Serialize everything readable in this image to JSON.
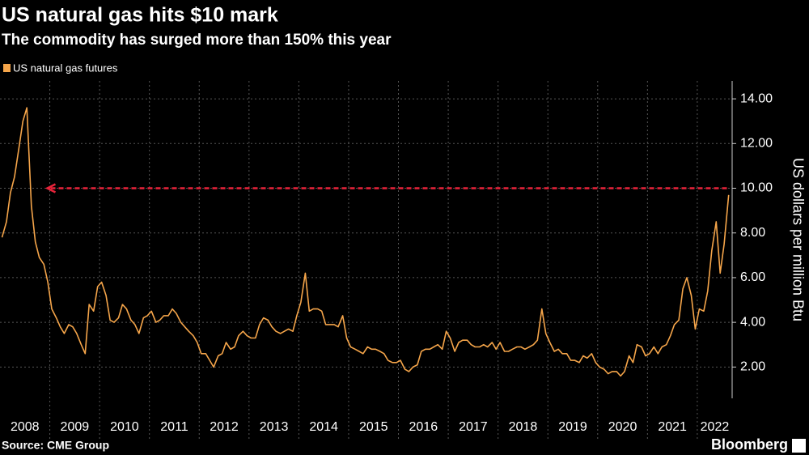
{
  "chart_data": {
    "type": "line",
    "title": "US natural gas hits $10 mark",
    "subtitle": "The commodity has surged more than 150% this year",
    "y_label": "US dollars per million Btu",
    "source": "Source: CME Group",
    "brand": "Bloomberg",
    "legend": "top-left",
    "grid": true,
    "xlim": [
      2008,
      2022.7
    ],
    "xticks": [
      2008,
      2009,
      2010,
      2011,
      2012,
      2013,
      2014,
      2015,
      2016,
      2017,
      2018,
      2019,
      2020,
      2021,
      2022
    ],
    "ylim": [
      0.6,
      14.8
    ],
    "yticks": [
      {
        "value": 2,
        "label": "2.00"
      },
      {
        "value": 4,
        "label": "4.00"
      },
      {
        "value": 6,
        "label": "6.00"
      },
      {
        "value": 8,
        "label": "8.00"
      },
      {
        "value": 10,
        "label": "10.00"
      },
      {
        "value": 12,
        "label": "12.00"
      },
      {
        "value": 14,
        "label": "14.00"
      }
    ],
    "reference_line": {
      "value": 10,
      "x": [
        2008.95,
        2022.63
      ],
      "color": "#e8233a"
    },
    "x": [
      2008.04,
      2008.13,
      2008.21,
      2008.29,
      2008.38,
      2008.46,
      2008.54,
      2008.63,
      2008.71,
      2008.79,
      2008.88,
      2008.96,
      2009.04,
      2009.13,
      2009.21,
      2009.29,
      2009.38,
      2009.46,
      2009.54,
      2009.63,
      2009.71,
      2009.79,
      2009.88,
      2009.96,
      2010.04,
      2010.13,
      2010.21,
      2010.29,
      2010.38,
      2010.46,
      2010.54,
      2010.63,
      2010.71,
      2010.79,
      2010.88,
      2010.96,
      2011.04,
      2011.13,
      2011.21,
      2011.29,
      2011.38,
      2011.46,
      2011.54,
      2011.63,
      2011.71,
      2011.79,
      2011.88,
      2011.96,
      2012.04,
      2012.13,
      2012.21,
      2012.29,
      2012.38,
      2012.46,
      2012.54,
      2012.63,
      2012.71,
      2012.79,
      2012.88,
      2012.96,
      2013.04,
      2013.13,
      2013.21,
      2013.29,
      2013.38,
      2013.46,
      2013.54,
      2013.63,
      2013.71,
      2013.79,
      2013.88,
      2013.96,
      2014.04,
      2014.13,
      2014.21,
      2014.29,
      2014.38,
      2014.46,
      2014.54,
      2014.63,
      2014.71,
      2014.79,
      2014.88,
      2014.96,
      2015.04,
      2015.13,
      2015.21,
      2015.29,
      2015.38,
      2015.46,
      2015.54,
      2015.63,
      2015.71,
      2015.79,
      2015.88,
      2015.96,
      2016.04,
      2016.13,
      2016.21,
      2016.29,
      2016.38,
      2016.46,
      2016.54,
      2016.63,
      2016.71,
      2016.79,
      2016.88,
      2016.96,
      2017.04,
      2017.13,
      2017.21,
      2017.29,
      2017.38,
      2017.46,
      2017.54,
      2017.63,
      2017.71,
      2017.79,
      2017.88,
      2017.96,
      2018.04,
      2018.13,
      2018.21,
      2018.29,
      2018.38,
      2018.46,
      2018.54,
      2018.63,
      2018.71,
      2018.79,
      2018.88,
      2018.96,
      2019.04,
      2019.13,
      2019.21,
      2019.29,
      2019.38,
      2019.46,
      2019.54,
      2019.63,
      2019.71,
      2019.79,
      2019.88,
      2019.96,
      2020.04,
      2020.13,
      2020.21,
      2020.29,
      2020.38,
      2020.46,
      2020.54,
      2020.63,
      2020.71,
      2020.79,
      2020.88,
      2020.96,
      2021.04,
      2021.13,
      2021.21,
      2021.29,
      2021.38,
      2021.46,
      2021.54,
      2021.63,
      2021.71,
      2021.79,
      2021.88,
      2021.96,
      2022.04,
      2022.13,
      2022.21,
      2022.29,
      2022.38,
      2022.46,
      2022.54,
      2022.63
    ],
    "series": [
      {
        "name": "US natural gas futures",
        "color": "#f5a54a",
        "values": [
          7.8,
          8.5,
          9.8,
          10.5,
          11.8,
          13.0,
          13.6,
          9.2,
          7.6,
          6.9,
          6.6,
          5.8,
          4.6,
          4.2,
          3.8,
          3.5,
          3.9,
          3.8,
          3.5,
          3.0,
          2.6,
          4.8,
          4.5,
          5.6,
          5.8,
          5.2,
          4.1,
          4.0,
          4.2,
          4.8,
          4.6,
          4.1,
          3.9,
          3.5,
          4.2,
          4.3,
          4.5,
          4.0,
          4.1,
          4.3,
          4.3,
          4.6,
          4.4,
          4.0,
          3.8,
          3.6,
          3.4,
          3.1,
          2.6,
          2.6,
          2.3,
          2.0,
          2.5,
          2.6,
          3.1,
          2.8,
          2.9,
          3.4,
          3.6,
          3.4,
          3.3,
          3.3,
          3.9,
          4.2,
          4.1,
          3.8,
          3.6,
          3.5,
          3.6,
          3.7,
          3.6,
          4.3,
          4.9,
          6.2,
          4.5,
          4.6,
          4.6,
          4.5,
          3.9,
          3.9,
          3.9,
          3.8,
          4.3,
          3.3,
          2.9,
          2.8,
          2.7,
          2.6,
          2.9,
          2.8,
          2.8,
          2.7,
          2.6,
          2.3,
          2.2,
          2.2,
          2.3,
          1.9,
          1.8,
          2.0,
          2.1,
          2.7,
          2.8,
          2.8,
          2.9,
          3.0,
          2.8,
          3.6,
          3.3,
          2.7,
          3.1,
          3.2,
          3.2,
          3.0,
          2.9,
          2.9,
          3.0,
          2.9,
          3.1,
          2.8,
          3.1,
          2.7,
          2.7,
          2.8,
          2.9,
          2.9,
          2.8,
          2.9,
          3.0,
          3.2,
          4.6,
          3.5,
          3.1,
          2.7,
          2.8,
          2.6,
          2.6,
          2.3,
          2.3,
          2.2,
          2.5,
          2.4,
          2.6,
          2.2,
          2.0,
          1.9,
          1.7,
          1.8,
          1.8,
          1.6,
          1.8,
          2.5,
          2.2,
          3.0,
          2.9,
          2.5,
          2.6,
          2.9,
          2.6,
          2.9,
          3.0,
          3.4,
          3.9,
          4.1,
          5.5,
          6.0,
          5.2,
          3.7,
          4.6,
          4.5,
          5.4,
          7.2,
          8.5,
          6.2,
          7.5,
          9.7
        ]
      }
    ]
  }
}
